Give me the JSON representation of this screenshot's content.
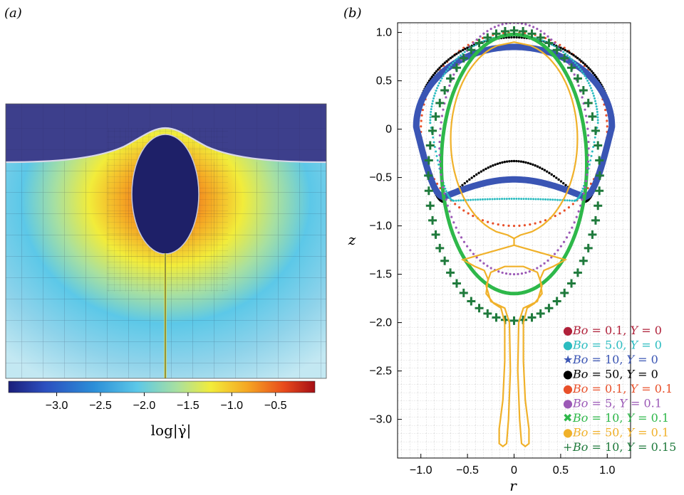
{
  "panels": {
    "a_label": "(a)",
    "b_label": "(b)"
  },
  "colorbar": {
    "label": "log|γ̇|",
    "ticks": [
      "−3.0",
      "−2.5",
      "−2.0",
      "−1.5",
      "−1.0",
      "−0.5"
    ],
    "tick_values": [
      -3.0,
      -2.5,
      -2.0,
      -1.5,
      -1.0,
      -0.5
    ],
    "range": [
      -3.55,
      -0.05
    ],
    "colormap": [
      "#1b1e7a",
      "#2c4fbf",
      "#2c8fd8",
      "#5cc8e8",
      "#a8e0a0",
      "#f2ec3a",
      "#f5a623",
      "#e84a1c",
      "#a50f15"
    ]
  },
  "chart_data": [
    {
      "type": "heatmap",
      "panel": "(a)",
      "colorbar_label": "log|γ̇|",
      "colorbar_ticks": [
        -3.0,
        -2.5,
        -2.0,
        -1.5,
        -1.0,
        -0.5
      ]
    },
    {
      "type": "scatter",
      "panel": "(b)",
      "xlabel": "r",
      "ylabel": "z",
      "xlim": [
        -1.25,
        1.25
      ],
      "ylim": [
        -3.4,
        1.1
      ],
      "xticks": [
        "−1.0",
        "−0.5",
        "0",
        "0.5",
        "1.0"
      ],
      "xtick_values": [
        -1.0,
        -0.5,
        0,
        0.5,
        1.0
      ],
      "yticks": [
        "1.0",
        "0.5",
        "0",
        "−0.5",
        "−1.0",
        "−1.5",
        "−2.0",
        "−2.5",
        "−3.0"
      ],
      "ytick_values": [
        1.0,
        0.5,
        0,
        -0.5,
        -1.0,
        -1.5,
        -2.0,
        -2.5,
        -3.0
      ],
      "grid": true,
      "legend_position": "bottom-right",
      "legend": [
        {
          "marker": "●",
          "name_plain": "Bo = 0.1, Y = 0",
          "bo": "0.1",
          "y": "0",
          "color": "#b0213a"
        },
        {
          "marker": "●",
          "name_plain": "Bo = 5.0, Y = 0",
          "bo": "5.0",
          "y": "0",
          "color": "#2bbcc0"
        },
        {
          "marker": "★",
          "name_plain": "Bo = 10, Y = 0",
          "bo": "10",
          "y": "0",
          "color": "#3a55b4"
        },
        {
          "marker": "●",
          "name_plain": "Bo = 50, Y = 0",
          "bo": "50",
          "y": "0",
          "color": "#000000"
        },
        {
          "marker": "●",
          "name_plain": "Bo = 0.1, Y = 0.1",
          "bo": "0.1",
          "y": "0.1",
          "color": "#e8502a"
        },
        {
          "marker": "●",
          "name_plain": "Bo = 5, Y = 0.1",
          "bo": "5",
          "y": "0.1",
          "color": "#9b59b6"
        },
        {
          "marker": "✖",
          "name_plain": "Bo = 10, Y = 0.1",
          "bo": "10",
          "y": "0.1",
          "color": "#2eb84a"
        },
        {
          "marker": "●",
          "name_plain": "Bo = 50, Y = 0.1",
          "bo": "50",
          "y": "0.1",
          "color": "#f0b12a"
        },
        {
          "marker": "+",
          "name_plain": "Bo = 10, Y = 0.15",
          "bo": "10",
          "y": "0.15",
          "color": "#1f7a3c"
        }
      ],
      "series": [
        {
          "name": "Bo = 0.1, Y = 0.1",
          "shape": "ellipse",
          "center": [
            0,
            0
          ],
          "a": 1.0,
          "b": 1.0
        },
        {
          "name": "Bo = 50, Y = 0",
          "shape": "cap",
          "r_max": 1.05,
          "top": 0.95,
          "bottom_inner": -0.33,
          "bottom_edge": -0.75
        },
        {
          "name": "Bo = 10, Y = 0",
          "shape": "cap",
          "r_max": 1.05,
          "top": 0.85,
          "bottom_inner": -0.52,
          "bottom_edge": -0.7
        },
        {
          "name": "Bo = 5.0, Y = 0",
          "shape": "cap",
          "r_max": 0.9,
          "top": 0.97,
          "bottom_inner": -0.72,
          "bottom_edge": -0.74
        },
        {
          "name": "Bo = 10, Y = 0.1",
          "shape": "ellipse",
          "center": [
            0,
            -0.36
          ],
          "a": 0.78,
          "b": 1.34
        },
        {
          "name": "Bo = 5, Y = 0.1",
          "shape": "ellipse",
          "center": [
            0,
            -0.2
          ],
          "a": 0.8,
          "b": 1.3
        },
        {
          "name": "Bo = 10, Y = 0.15",
          "shape": "ellipse",
          "center": [
            0,
            -0.48
          ],
          "a": 0.92,
          "b": 1.5
        },
        {
          "name": "Bo = 50, Y = 0.1",
          "shape": "tail",
          "top": 0.9,
          "bulb_bottom": -1.65,
          "tail_bottom": -3.28
        }
      ]
    }
  ]
}
